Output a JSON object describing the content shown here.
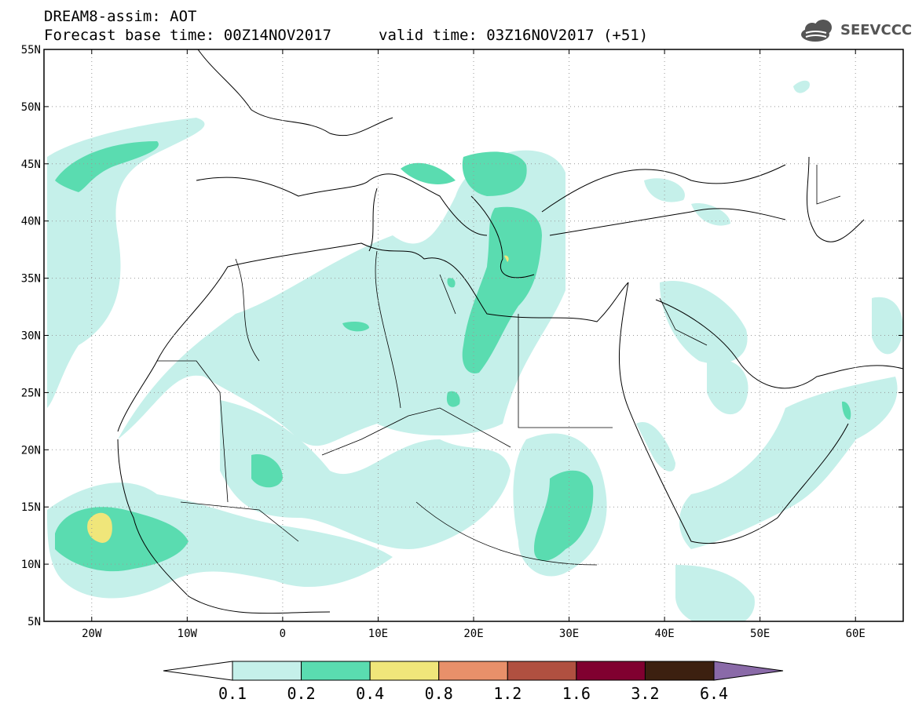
{
  "title": {
    "line1": "DREAM8-assim: AOT",
    "line2": "Forecast base time: 00Z14NOV2017",
    "valid": "valid time: 03Z16NOV2017 (+51)"
  },
  "logo": {
    "text": "SEEVCCC",
    "icon": "cloud-icon"
  },
  "map": {
    "lon_range": [
      -25,
      65
    ],
    "lat_range": [
      5,
      55
    ],
    "lat_labels": [
      "55N",
      "50N",
      "45N",
      "40N",
      "35N",
      "30N",
      "25N",
      "20N",
      "15N",
      "10N",
      "5N"
    ],
    "lat_values": [
      55,
      50,
      45,
      40,
      35,
      30,
      25,
      20,
      15,
      10,
      5
    ],
    "lon_labels": [
      "20W",
      "10W",
      "0",
      "10E",
      "20E",
      "30E",
      "40E",
      "50E",
      "60E"
    ],
    "lon_values": [
      -20,
      -10,
      0,
      10,
      20,
      30,
      40,
      50,
      60
    ],
    "grid": true
  },
  "colorbar": {
    "colors": [
      "#ffffff",
      "#c5f0ea",
      "#5adcb0",
      "#f0e67a",
      "#e8906a",
      "#b05040",
      "#800030",
      "#3c2010",
      "#8a6aa8"
    ],
    "labels": [
      "0.1",
      "0.2",
      "0.4",
      "0.8",
      "1.2",
      "1.6",
      "3.2",
      "6.4"
    ]
  }
}
